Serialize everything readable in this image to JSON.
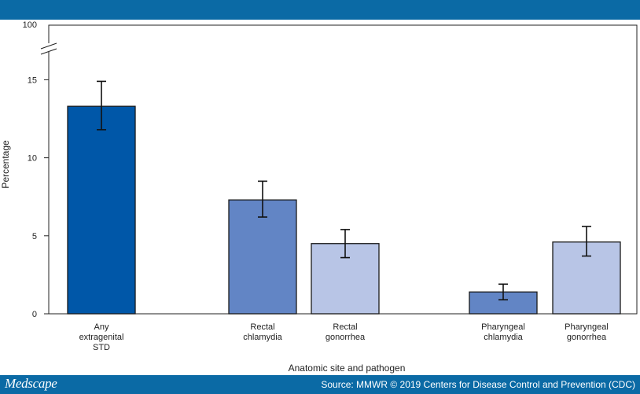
{
  "header": {
    "color": "#0b6aa5"
  },
  "footer": {
    "brand": "Medscape",
    "source": "Source: MMWR © 2019 Centers for Disease Control and Prevention (CDC)",
    "color": "#0b6aa5"
  },
  "chart_data": {
    "type": "bar",
    "categories": [
      [
        "Any",
        "extragenital",
        "STD"
      ],
      [
        "Rectal",
        "chlamydia"
      ],
      [
        "Rectal",
        "gonorrhea"
      ],
      [
        "Pharyngeal",
        "chlamydia"
      ],
      [
        "Pharyngeal",
        "gonorrhea"
      ]
    ],
    "values": [
      13.3,
      7.3,
      4.5,
      1.4,
      4.6
    ],
    "error_low": [
      11.8,
      6.2,
      3.6,
      0.9,
      3.7
    ],
    "error_high": [
      14.9,
      8.5,
      5.4,
      1.9,
      5.6
    ],
    "bar_colors": [
      "#0057a8",
      "#6285c5",
      "#b8c5e6",
      "#6285c5",
      "#b8c5e6"
    ],
    "ylabel": "Percentage",
    "xlabel": "Anatomic site and pathogen",
    "ylim": [
      0,
      18.5
    ],
    "yticks": [
      0,
      5,
      10,
      15
    ],
    "ytick_labels": [
      "0",
      "5",
      "10",
      "15"
    ],
    "axis_break": true,
    "axis_top_label": "100",
    "grid": false,
    "error_bars": true
  }
}
